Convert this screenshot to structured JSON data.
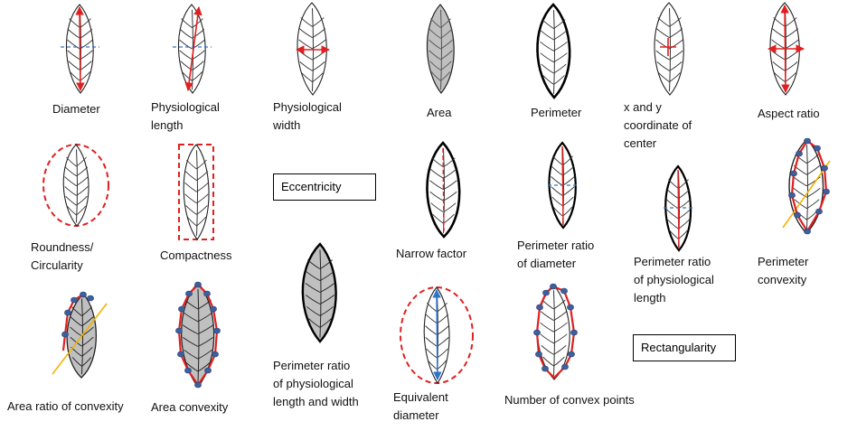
{
  "colors": {
    "outline": "#222222",
    "vein": "#333333",
    "red": "#e02020",
    "blue": "#2e74c9",
    "fill": "#c0c0c0",
    "dot": "#3e5f9e",
    "yellow": "#f2b400"
  },
  "labels": {
    "diameter": "Diameter",
    "physiological_length": "Physiological\nlength",
    "physiological_width": "Physiological\nwidth",
    "area": "Area",
    "perimeter": "Perimeter",
    "xy_center": "x and y\ncoordinate of\ncenter",
    "aspect_ratio": "Aspect ratio",
    "roundness": "Roundness/\nCircularity",
    "compactness": "Compactness",
    "eccentricity": "Eccentricity",
    "narrow_factor": "Narrow factor",
    "perimeter_ratio_diameter": "Perimeter ratio\nof diameter",
    "perimeter_ratio_phys_length": "Perimeter ratio\nof physiological\nlength",
    "perimeter_convexity": "Perimeter\nconvexity",
    "area_ratio_convexity": "Area ratio of convexity",
    "area_convexity": "Area convexity",
    "perimeter_ratio_length_width": "Perimeter ratio\nof physiological\nlength and width",
    "equivalent_diameter": "Equivalent\ndiameter",
    "number_convex_points": "Number of convex points",
    "rectangularity": "Rectangularity"
  }
}
